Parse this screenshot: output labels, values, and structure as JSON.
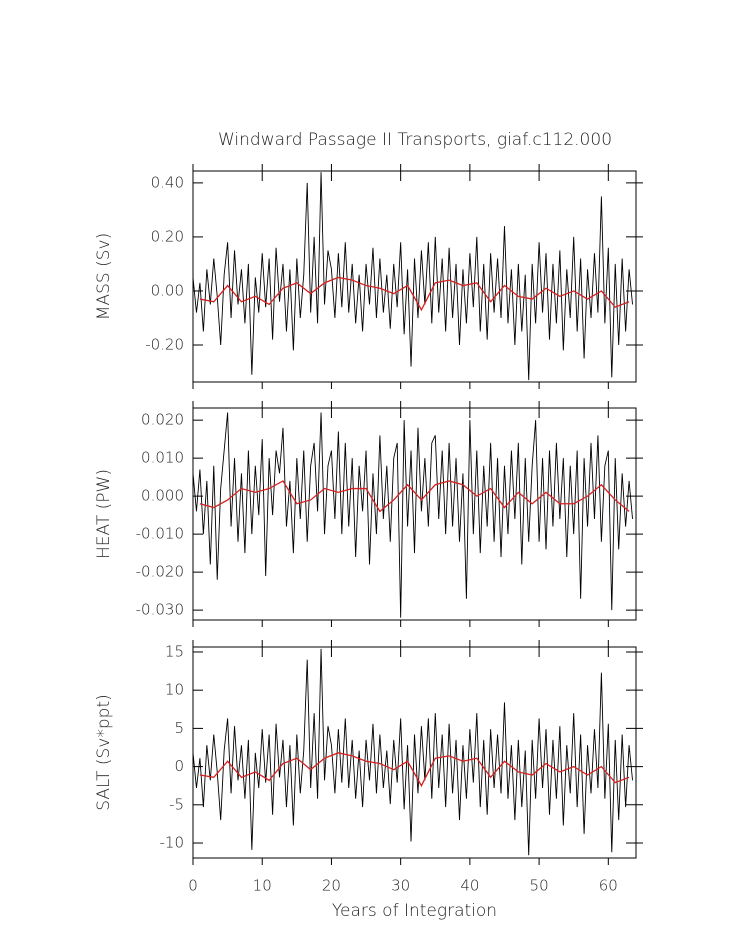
{
  "chart_data": [
    {
      "type": "line",
      "title": "Windward Passage II Transports, giaf.c112.000",
      "ylabel": "MASS (Sv)",
      "xlim": [
        0,
        64
      ],
      "xticks": [
        0,
        10,
        20,
        30,
        40,
        50,
        60
      ],
      "ylim": [
        -0.337,
        0.444
      ],
      "yticks": [
        {
          "value": 0.4,
          "label": "0.40"
        },
        {
          "value": 0.2,
          "label": "0.20"
        },
        {
          "value": 0,
          "label": "0.00"
        },
        {
          "value": -0.2,
          "label": "-0.20"
        }
      ],
      "series": [
        {
          "color": "#000000",
          "x": [
            0,
            0.5,
            1,
            1.5,
            2,
            2.5,
            3,
            3.5,
            4,
            4.5,
            5,
            5.5,
            6,
            6.5,
            7,
            7.5,
            8,
            8.5,
            9,
            9.5,
            10,
            10.5,
            11,
            11.5,
            12,
            12.5,
            13,
            13.5,
            14,
            14.5,
            15,
            15.5,
            16,
            16.5,
            17,
            17.5,
            18,
            18.5,
            19,
            19.5,
            20,
            20.5,
            21,
            21.5,
            22,
            22.5,
            23,
            23.5,
            24,
            24.5,
            25,
            25.5,
            26,
            26.5,
            27,
            27.5,
            28,
            28.5,
            29,
            29.5,
            30,
            30.5,
            31,
            31.5,
            32,
            32.5,
            33,
            33.5,
            34,
            34.5,
            35,
            35.5,
            36,
            36.5,
            37,
            37.5,
            38,
            38.5,
            39,
            39.5,
            40,
            40.5,
            41,
            41.5,
            42,
            42.5,
            43,
            43.5,
            44,
            44.5,
            45,
            45.5,
            46,
            46.5,
            47,
            47.5,
            48,
            48.5,
            49,
            49.5,
            50,
            50.5,
            51,
            51.5,
            52,
            52.5,
            53,
            53.5,
            54,
            54.5,
            55,
            55.5,
            56,
            56.5,
            57,
            57.5,
            58,
            58.5,
            59,
            59.5,
            60,
            60.5,
            61,
            61.5,
            62,
            62.5,
            63,
            63.5
          ],
          "values": [
            0.05,
            -0.08,
            0.03,
            -0.15,
            0.08,
            -0.05,
            0.12,
            -0.02,
            -0.2,
            0.06,
            0.18,
            -0.1,
            0.15,
            -0.05,
            0.08,
            -0.12,
            0.1,
            -0.31,
            0.05,
            -0.08,
            0.14,
            -0.06,
            0.12,
            -0.18,
            0.16,
            -0.04,
            0.1,
            -0.15,
            0.08,
            -0.22,
            0.12,
            -0.1,
            0.06,
            0.4,
            -0.08,
            0.2,
            -0.12,
            0.44,
            -0.05,
            0.15,
            0.08,
            -0.1,
            0.14,
            -0.06,
            0.18,
            -0.08,
            0.1,
            -0.12,
            0.06,
            -0.15,
            0.1,
            -0.05,
            0.16,
            -0.1,
            0.12,
            -0.08,
            0.06,
            -0.14,
            0.1,
            -0.06,
            0.18,
            -0.16,
            0.08,
            -0.28,
            0.12,
            -0.1,
            0.15,
            -0.05,
            0.18,
            -0.12,
            0.2,
            -0.08,
            0.12,
            -0.15,
            0.16,
            -0.1,
            0.1,
            -0.2,
            0.08,
            -0.12,
            0.14,
            -0.06,
            0.2,
            -0.15,
            0.1,
            -0.18,
            0.14,
            -0.08,
            0.12,
            -0.1,
            0.24,
            -0.12,
            0.08,
            -0.2,
            0.1,
            -0.15,
            0.06,
            -0.33,
            0.1,
            -0.12,
            0.18,
            -0.08,
            0.14,
            -0.18,
            0.1,
            -0.12,
            0.15,
            -0.22,
            0.08,
            -0.1,
            0.2,
            -0.15,
            0.12,
            -0.25,
            0.08,
            -0.1,
            0.14,
            -0.08,
            0.35,
            -0.12,
            0.16,
            -0.32,
            0.1,
            -0.2,
            0.12,
            -0.15,
            0.08,
            -0.05
          ]
        },
        {
          "color": "#d62020",
          "x": [
            1,
            3,
            5,
            7,
            9,
            11,
            13,
            15,
            17,
            19,
            21,
            23,
            25,
            27,
            29,
            31,
            33,
            35,
            37,
            39,
            41,
            43,
            45,
            47,
            49,
            51,
            53,
            55,
            57,
            59,
            61,
            63
          ],
          "values": [
            -0.03,
            -0.04,
            0.02,
            -0.04,
            -0.02,
            -0.05,
            0.01,
            0.03,
            -0.01,
            0.03,
            0.05,
            0.04,
            0.02,
            0.01,
            -0.01,
            0.02,
            -0.07,
            0.03,
            0.04,
            0.02,
            0.03,
            -0.04,
            0.02,
            -0.02,
            -0.03,
            0.01,
            -0.02,
            0.0,
            -0.03,
            0.0,
            -0.06,
            -0.04
          ]
        }
      ]
    },
    {
      "type": "line",
      "ylabel": "HEAT (PW)",
      "xlim": [
        0,
        64
      ],
      "xticks": [
        0,
        10,
        20,
        30,
        40,
        50,
        60
      ],
      "ylim": [
        -0.0326,
        0.0232
      ],
      "yticks": [
        {
          "value": 0.02,
          "label": "0.020"
        },
        {
          "value": 0.01,
          "label": "0.010"
        },
        {
          "value": 0,
          "label": "0.000"
        },
        {
          "value": -0.01,
          "label": "-0.010"
        },
        {
          "value": -0.02,
          "label": "-0.020"
        },
        {
          "value": -0.03,
          "label": "-0.030"
        }
      ],
      "series": [
        {
          "color": "#000000",
          "x": [
            0,
            0.5,
            1,
            1.5,
            2,
            2.5,
            3,
            3.5,
            4,
            4.5,
            5,
            5.5,
            6,
            6.5,
            7,
            7.5,
            8,
            8.5,
            9,
            9.5,
            10,
            10.5,
            11,
            11.5,
            12,
            12.5,
            13,
            13.5,
            14,
            14.5,
            15,
            15.5,
            16,
            16.5,
            17,
            17.5,
            18,
            18.5,
            19,
            19.5,
            20,
            20.5,
            21,
            21.5,
            22,
            22.5,
            23,
            23.5,
            24,
            24.5,
            25,
            25.5,
            26,
            26.5,
            27,
            27.5,
            28,
            28.5,
            29,
            29.5,
            30,
            30.5,
            31,
            31.5,
            32,
            32.5,
            33,
            33.5,
            34,
            34.5,
            35,
            35.5,
            36,
            36.5,
            37,
            37.5,
            38,
            38.5,
            39,
            39.5,
            40,
            40.5,
            41,
            41.5,
            42,
            42.5,
            43,
            43.5,
            44,
            44.5,
            45,
            45.5,
            46,
            46.5,
            47,
            47.5,
            48,
            48.5,
            49,
            49.5,
            50,
            50.5,
            51,
            51.5,
            52,
            52.5,
            53,
            53.5,
            54,
            54.5,
            55,
            55.5,
            56,
            56.5,
            57,
            57.5,
            58,
            58.5,
            59,
            59.5,
            60,
            60.5,
            61,
            61.5,
            62,
            62.5,
            63,
            63.5
          ],
          "values": [
            0.006,
            -0.004,
            0.007,
            -0.01,
            0.004,
            -0.018,
            0.008,
            -0.022,
            0.002,
            0.012,
            0.022,
            -0.008,
            0.01,
            -0.012,
            0.006,
            -0.015,
            0.012,
            -0.01,
            0.008,
            -0.005,
            0.015,
            -0.021,
            0.01,
            -0.005,
            0.012,
            0.006,
            0.018,
            -0.008,
            0.004,
            -0.015,
            0.01,
            -0.006,
            0.012,
            -0.012,
            0.008,
            0.014,
            -0.004,
            0.022,
            -0.01,
            0.008,
            0.012,
            -0.006,
            0.017,
            -0.01,
            0.014,
            -0.008,
            0.01,
            -0.016,
            0.008,
            -0.004,
            0.012,
            -0.018,
            0.006,
            -0.01,
            0.016,
            -0.006,
            0.008,
            -0.012,
            0.01,
            0.014,
            -0.032,
            0.02,
            -0.008,
            0.012,
            -0.015,
            0.018,
            -0.004,
            0.01,
            -0.008,
            0.014,
            0.016,
            -0.006,
            0.012,
            -0.01,
            0.014,
            -0.008,
            0.01,
            -0.012,
            0.006,
            -0.027,
            0.02,
            -0.01,
            0.012,
            -0.015,
            0.008,
            -0.008,
            0.014,
            -0.012,
            0.01,
            -0.016,
            0.008,
            -0.01,
            0.012,
            -0.006,
            0.014,
            -0.018,
            0.01,
            -0.012,
            0.008,
            0.02,
            -0.012,
            0.01,
            -0.014,
            0.012,
            -0.008,
            0.014,
            -0.006,
            0.01,
            -0.016,
            0.008,
            -0.01,
            0.012,
            -0.027,
            0.01,
            -0.008,
            0.014,
            -0.006,
            0.016,
            -0.012,
            0.008,
            0.012,
            -0.03,
            0.01,
            -0.014,
            0.006,
            -0.008,
            0.004,
            -0.006
          ]
        },
        {
          "color": "#d62020",
          "x": [
            1,
            3,
            5,
            7,
            9,
            11,
            13,
            15,
            17,
            19,
            21,
            23,
            25,
            27,
            29,
            31,
            33,
            35,
            37,
            39,
            41,
            43,
            45,
            47,
            49,
            51,
            53,
            55,
            57,
            59,
            61,
            63
          ],
          "values": [
            -0.002,
            -0.003,
            -0.001,
            0.002,
            0.001,
            0.002,
            0.004,
            -0.002,
            -0.001,
            0.002,
            0.001,
            0.002,
            0.002,
            -0.004,
            -0.001,
            0.003,
            -0.001,
            0.003,
            0.004,
            0.003,
            0.0,
            0.002,
            -0.003,
            0.001,
            -0.002,
            0.001,
            -0.002,
            -0.002,
            0.0,
            0.003,
            -0.001,
            -0.004
          ]
        }
      ]
    },
    {
      "type": "line",
      "ylabel": "SALT (Sv*ppt)",
      "xlabel": "Years of Integration",
      "xlim": [
        0,
        64
      ],
      "xticks": [
        0,
        10,
        20,
        30,
        40,
        50,
        60
      ],
      "ylim": [
        -11.96,
        15.65
      ],
      "yticks": [
        15,
        10,
        5,
        0,
        -5,
        -10
      ],
      "series": [
        {
          "color": "#000000",
          "x": [
            0,
            0.5,
            1,
            1.5,
            2,
            2.5,
            3,
            3.5,
            4,
            4.5,
            5,
            5.5,
            6,
            6.5,
            7,
            7.5,
            8,
            8.5,
            9,
            9.5,
            10,
            10.5,
            11,
            11.5,
            12,
            12.5,
            13,
            13.5,
            14,
            14.5,
            15,
            15.5,
            16,
            16.5,
            17,
            17.5,
            18,
            18.5,
            19,
            19.5,
            20,
            20.5,
            21,
            21.5,
            22,
            22.5,
            23,
            23.5,
            24,
            24.5,
            25,
            25.5,
            26,
            26.5,
            27,
            27.5,
            28,
            28.5,
            29,
            29.5,
            30,
            30.5,
            31,
            31.5,
            32,
            32.5,
            33,
            33.5,
            34,
            34.5,
            35,
            35.5,
            36,
            36.5,
            37,
            37.5,
            38,
            38.5,
            39,
            39.5,
            40,
            40.5,
            41,
            41.5,
            42,
            42.5,
            43,
            43.5,
            44,
            44.5,
            45,
            45.5,
            46,
            46.5,
            47,
            47.5,
            48,
            48.5,
            49,
            49.5,
            50,
            50.5,
            51,
            51.5,
            52,
            52.5,
            53,
            53.5,
            54,
            54.5,
            55,
            55.5,
            56,
            56.5,
            57,
            57.5,
            58,
            58.5,
            59,
            59.5,
            60,
            60.5,
            61,
            61.5,
            62,
            62.5,
            63,
            63.5
          ],
          "values": [
            1.8,
            -2.8,
            1.1,
            -5.3,
            2.8,
            -1.8,
            4.2,
            -0.7,
            -7.0,
            2.1,
            6.3,
            -3.5,
            5.3,
            -1.8,
            2.8,
            -4.2,
            3.5,
            -10.9,
            1.8,
            -2.8,
            4.9,
            -2.1,
            4.2,
            -6.3,
            5.6,
            -1.4,
            3.5,
            -5.3,
            2.8,
            -7.7,
            4.2,
            -3.5,
            2.1,
            14.0,
            -2.8,
            7.0,
            -4.2,
            15.4,
            -1.8,
            5.3,
            2.8,
            -3.5,
            4.9,
            -2.1,
            6.3,
            -2.8,
            3.5,
            -4.2,
            2.1,
            -5.3,
            3.5,
            -1.8,
            5.6,
            -3.5,
            4.2,
            -2.8,
            2.1,
            -4.9,
            3.5,
            -2.1,
            6.3,
            -5.6,
            2.8,
            -9.8,
            4.2,
            -3.5,
            5.3,
            -1.8,
            6.3,
            -4.2,
            7.0,
            -2.8,
            4.2,
            -5.3,
            5.6,
            -3.5,
            3.5,
            -7.0,
            2.8,
            -4.2,
            4.9,
            -2.1,
            7.0,
            -5.3,
            3.5,
            -6.3,
            4.9,
            -2.8,
            4.2,
            -3.5,
            8.4,
            -4.2,
            2.8,
            -7.0,
            3.5,
            -5.3,
            2.1,
            -11.6,
            3.5,
            -4.2,
            6.3,
            -2.8,
            4.9,
            -6.3,
            3.5,
            -4.2,
            5.3,
            -7.7,
            2.8,
            -3.5,
            7.0,
            -5.3,
            4.2,
            -8.8,
            2.8,
            -3.5,
            4.9,
            -2.8,
            12.3,
            -4.2,
            5.6,
            -11.2,
            3.5,
            -7.0,
            4.2,
            -5.3,
            2.8,
            -1.8
          ]
        },
        {
          "color": "#d62020",
          "x": [
            1,
            3,
            5,
            7,
            9,
            11,
            13,
            15,
            17,
            19,
            21,
            23,
            25,
            27,
            29,
            31,
            33,
            35,
            37,
            39,
            41,
            43,
            45,
            47,
            49,
            51,
            53,
            55,
            57,
            59,
            61,
            63
          ],
          "values": [
            -1.1,
            -1.4,
            0.7,
            -1.4,
            -0.7,
            -1.8,
            0.4,
            1.1,
            -0.4,
            1.1,
            1.8,
            1.4,
            0.7,
            0.4,
            -0.4,
            0.7,
            -2.5,
            1.1,
            1.4,
            0.7,
            1.1,
            -1.4,
            0.7,
            -0.7,
            -1.1,
            0.4,
            -0.7,
            0.0,
            -1.1,
            0.0,
            -2.1,
            -1.4
          ]
        }
      ]
    }
  ]
}
